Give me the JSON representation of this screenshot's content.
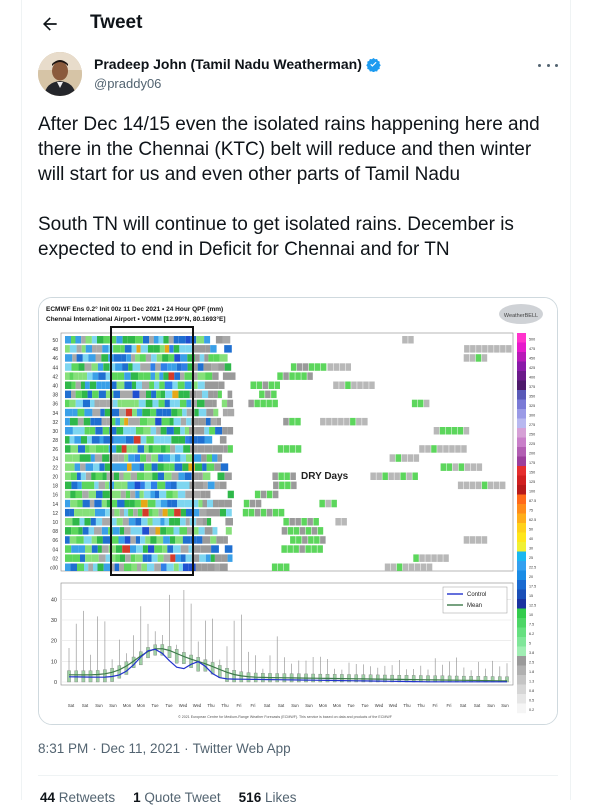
{
  "header": {
    "title": "Tweet"
  },
  "author": {
    "name": "Pradeep John (Tamil Nadu Weatherman)",
    "handle": "@praddy06"
  },
  "tweet": {
    "paragraphs": [
      "After Dec 14/15 even the isolated rains happening here and there in the Chennai (KTC) belt will reduce and then winter will start for us and even other parts of Tamil Nadu",
      "South TN will continue to get isolated rains. December is expected to end in Deficit for Chennai and for TN"
    ]
  },
  "media": {
    "title": "ECMWF Ens 0.2° Init 00z 11 Dec 2021 • 24 Hour QPF (mm)",
    "subtitle": "Chennai International Airport • VOMM [12.99°N, 80.1693°E]",
    "annotation": "DRY Days",
    "logo": "WeatherBELL",
    "legend": [
      "Control",
      "Mean"
    ],
    "footer": "© 2021 European Centre for Medium-Range Weather Forecasts (ECMWF). This service is based on data and products of the ECMWF",
    "member_labels": [
      "50",
      "48",
      "46",
      "44",
      "42",
      "40",
      "38",
      "36",
      "34",
      "32",
      "30",
      "28",
      "26",
      "24",
      "22",
      "20",
      "18",
      "16",
      "14",
      "12",
      "10",
      "08",
      "06",
      "04",
      "02",
      "c00"
    ],
    "qpf_y_ticks": [
      "40",
      "30",
      "20",
      "10",
      "0"
    ],
    "scale_labels": [
      "500",
      "475",
      "450",
      "425",
      "400",
      "375",
      "350",
      "325",
      "300",
      "275",
      "250",
      "225",
      "200",
      "175",
      "150",
      "125",
      "100",
      "87.5",
      "75",
      "62.5",
      "50",
      "40",
      "30",
      "25",
      "22.5",
      "20",
      "17.5",
      "15",
      "12.5",
      "10",
      "7.5",
      "6.2",
      "5",
      "3.8",
      "2.5",
      "1.8",
      "1.3",
      "0.8",
      "0.5",
      "0.2"
    ],
    "day_labels": [
      "Sat",
      "Sat",
      "Sun",
      "Sun",
      "Mon",
      "Mon",
      "Tue",
      "Tue",
      "Wed",
      "Wed",
      "Thu",
      "Thu",
      "Fri",
      "Fri",
      "Sat",
      "Sat",
      "Sun",
      "Sun",
      "Mon",
      "Mon",
      "Tue",
      "Tue",
      "Wed",
      "Wed",
      "Thu",
      "Thu",
      "Fri",
      "Fri",
      "Sat",
      "Sat",
      "Sun",
      "Sun"
    ]
  },
  "timestamp": {
    "time": "8:31 PM",
    "date": "Dec 11, 2021",
    "app": "Twitter Web App"
  },
  "stats": {
    "retweets": "44",
    "retweets_label": "Retweets",
    "quotes": "1",
    "quotes_label": "Quote Tweet",
    "likes": "516",
    "likes_label": "Likes"
  }
}
